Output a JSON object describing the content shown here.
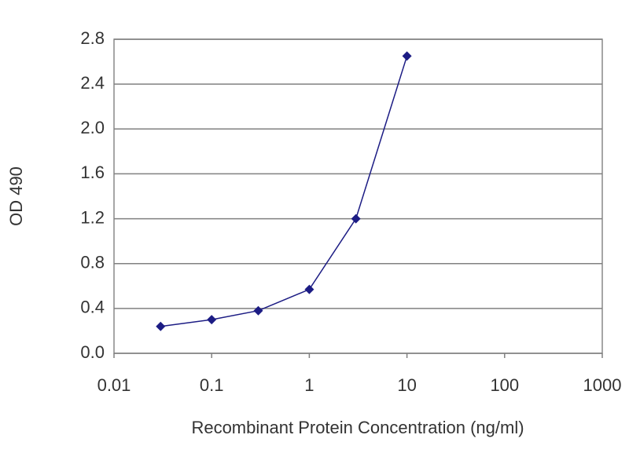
{
  "chart_data": {
    "type": "line",
    "xlabel": "Recombinant Protein Concentration (ng/ml)",
    "ylabel": "OD 490",
    "xscale": "log",
    "xlim": [
      0.01,
      1000
    ],
    "xticks": [
      0.01,
      0.1,
      1,
      10,
      100,
      1000
    ],
    "ylim": [
      0,
      2.8
    ],
    "yticks": [
      {
        "value": 0,
        "label": "0.0"
      },
      0.4,
      0.8,
      1.2,
      1.6,
      {
        "value": 2,
        "label": "2.0"
      },
      2.4,
      2.8
    ],
    "grid": true,
    "x": [
      0.03,
      0.1,
      0.3,
      1,
      3,
      10
    ],
    "series": [
      {
        "name": "OD 490",
        "color": "#1c1c84",
        "values": [
          0.24,
          0.3,
          0.38,
          0.57,
          1.2,
          2.65
        ]
      }
    ]
  }
}
